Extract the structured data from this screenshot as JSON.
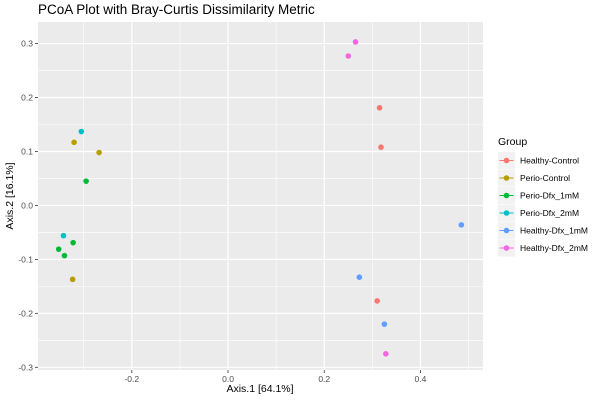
{
  "chart_data": {
    "type": "scatter",
    "title": "PCoA Plot with Bray-Curtis Dissimilarity Metric",
    "xlabel": "Axis.1   [64.1%]",
    "ylabel": "Axis.2   [16.1%]",
    "xlim": [
      -0.395,
      0.53
    ],
    "ylim": [
      -0.305,
      0.34
    ],
    "xticks": [
      -0.2,
      0.0,
      0.2,
      0.4
    ],
    "xtick_labels": [
      "-0.2",
      "0.0",
      "0.2",
      "0.4"
    ],
    "yticks": [
      -0.3,
      -0.2,
      -0.1,
      0.0,
      0.1,
      0.2,
      0.3
    ],
    "ytick_labels": [
      "-0.3",
      "-0.2",
      "-0.1",
      "0.0",
      "0.1",
      "0.2",
      "0.3"
    ],
    "grid": true,
    "background": "#ebebeb",
    "legend": {
      "title": "Group",
      "position": "right"
    },
    "series": [
      {
        "name": "Healthy-Control",
        "color": "#F8766D",
        "points": [
          [
            0.315,
            0.181
          ],
          [
            0.318,
            0.108
          ],
          [
            0.31,
            -0.177
          ]
        ]
      },
      {
        "name": "Perio-Control",
        "color": "#B79F00",
        "points": [
          [
            -0.32,
            0.117
          ],
          [
            -0.268,
            0.098
          ],
          [
            -0.323,
            -0.137
          ]
        ]
      },
      {
        "name": "Perio-Dfx_1mM",
        "color": "#00BA38",
        "points": [
          [
            -0.295,
            0.045
          ],
          [
            -0.322,
            -0.069
          ],
          [
            -0.34,
            -0.093
          ],
          [
            -0.352,
            -0.081
          ]
        ]
      },
      {
        "name": "Perio-Dfx_2mM",
        "color": "#00BFC4",
        "points": [
          [
            -0.305,
            0.137
          ],
          [
            -0.342,
            -0.056
          ]
        ]
      },
      {
        "name": "Healthy-Dfx_1mM",
        "color": "#619CFF",
        "points": [
          [
            0.485,
            -0.036
          ],
          [
            0.273,
            -0.133
          ],
          [
            0.325,
            -0.22
          ]
        ]
      },
      {
        "name": "Healthy-Dfx_2mM",
        "color": "#F564E3",
        "points": [
          [
            0.265,
            0.303
          ],
          [
            0.25,
            0.277
          ],
          [
            0.328,
            -0.275
          ]
        ]
      }
    ]
  }
}
